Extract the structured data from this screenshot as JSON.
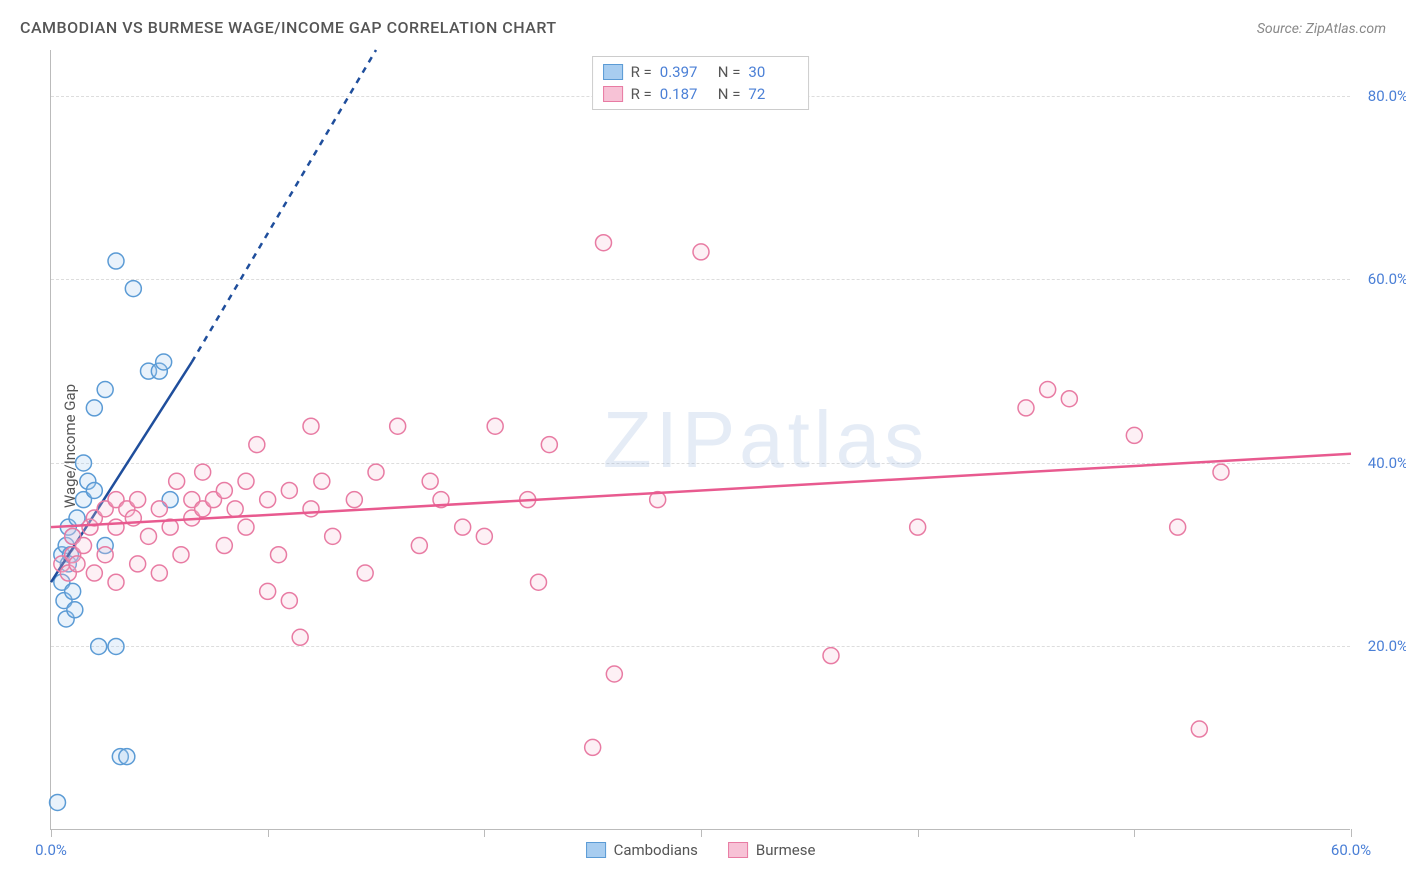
{
  "header": {
    "title": "CAMBODIAN VS BURMESE WAGE/INCOME GAP CORRELATION CHART",
    "source": "Source: ZipAtlas.com"
  },
  "watermark": "ZIPatlas",
  "chart": {
    "type": "scatter",
    "ylabel": "Wage/Income Gap",
    "xlim": [
      0,
      60
    ],
    "ylim": [
      0,
      85
    ],
    "xtick_step": 10,
    "xtick_labels": {
      "0": "0.0%",
      "60": "60.0%"
    },
    "ytick_step": 20,
    "ytick_labels": {
      "20": "20.0%",
      "40": "40.0%",
      "60": "60.0%",
      "80": "80.0%"
    },
    "background_color": "#ffffff",
    "grid_color": "#dddddd",
    "grid_dash": "4,4",
    "axis_color": "#bbbbbb",
    "marker_radius": 8,
    "marker_stroke_width": 1.5,
    "marker_fill_opacity": 0.25,
    "series": [
      {
        "name": "Cambodians",
        "color_stroke": "#5b9bd5",
        "color_fill": "#a8cdf0",
        "trend_color": "#1f4e9c",
        "trend_width": 2.5,
        "R": "0.397",
        "N": "30",
        "trend_solid": {
          "x1": 0,
          "y1": 27,
          "x2": 6.5,
          "y2": 51
        },
        "trend_dash": {
          "x1": 6.5,
          "y1": 51,
          "x2": 15,
          "y2": 85
        },
        "points": [
          [
            0.3,
            3
          ],
          [
            0.5,
            30
          ],
          [
            0.5,
            27
          ],
          [
            0.6,
            25
          ],
          [
            0.7,
            23
          ],
          [
            0.7,
            31
          ],
          [
            0.8,
            29
          ],
          [
            0.8,
            33
          ],
          [
            0.9,
            30
          ],
          [
            1.0,
            26
          ],
          [
            1.0,
            32
          ],
          [
            1.1,
            24
          ],
          [
            1.2,
            34
          ],
          [
            1.5,
            36
          ],
          [
            1.5,
            40
          ],
          [
            1.7,
            38
          ],
          [
            2.0,
            37
          ],
          [
            2.0,
            46
          ],
          [
            2.2,
            20
          ],
          [
            2.5,
            31
          ],
          [
            2.5,
            48
          ],
          [
            3.0,
            20
          ],
          [
            3.0,
            62
          ],
          [
            3.2,
            8
          ],
          [
            3.5,
            8
          ],
          [
            3.8,
            59
          ],
          [
            4.5,
            50
          ],
          [
            5.0,
            50
          ],
          [
            5.2,
            51
          ],
          [
            5.5,
            36
          ]
        ]
      },
      {
        "name": "Burmese",
        "color_stroke": "#e87ba3",
        "color_fill": "#f7c2d6",
        "trend_color": "#e85a8f",
        "trend_width": 2.5,
        "R": "0.187",
        "N": "72",
        "trend_solid": {
          "x1": 0,
          "y1": 33,
          "x2": 60,
          "y2": 41
        },
        "trend_dash": null,
        "points": [
          [
            0.5,
            29
          ],
          [
            0.8,
            28
          ],
          [
            1.0,
            30
          ],
          [
            1.0,
            32
          ],
          [
            1.2,
            29
          ],
          [
            1.5,
            31
          ],
          [
            1.8,
            33
          ],
          [
            2.0,
            28
          ],
          [
            2.0,
            34
          ],
          [
            2.5,
            30
          ],
          [
            2.5,
            35
          ],
          [
            3.0,
            27
          ],
          [
            3.0,
            33
          ],
          [
            3.0,
            36
          ],
          [
            3.5,
            35
          ],
          [
            3.8,
            34
          ],
          [
            4.0,
            29
          ],
          [
            4.0,
            36
          ],
          [
            4.5,
            32
          ],
          [
            5.0,
            28
          ],
          [
            5.0,
            35
          ],
          [
            5.5,
            33
          ],
          [
            5.8,
            38
          ],
          [
            6.0,
            30
          ],
          [
            6.5,
            36
          ],
          [
            6.5,
            34
          ],
          [
            7.0,
            35
          ],
          [
            7.0,
            39
          ],
          [
            7.5,
            36
          ],
          [
            8.0,
            31
          ],
          [
            8.0,
            37
          ],
          [
            8.5,
            35
          ],
          [
            9.0,
            33
          ],
          [
            9.0,
            38
          ],
          [
            9.5,
            42
          ],
          [
            10.0,
            26
          ],
          [
            10.0,
            36
          ],
          [
            10.5,
            30
          ],
          [
            11.0,
            37
          ],
          [
            11.0,
            25
          ],
          [
            11.5,
            21
          ],
          [
            12.0,
            35
          ],
          [
            12.0,
            44
          ],
          [
            12.5,
            38
          ],
          [
            13.0,
            32
          ],
          [
            14.0,
            36
          ],
          [
            14.5,
            28
          ],
          [
            15.0,
            39
          ],
          [
            16.0,
            44
          ],
          [
            17.0,
            31
          ],
          [
            17.5,
            38
          ],
          [
            18.0,
            36
          ],
          [
            19.0,
            33
          ],
          [
            20.0,
            32
          ],
          [
            20.5,
            44
          ],
          [
            22.0,
            36
          ],
          [
            22.5,
            27
          ],
          [
            23.0,
            42
          ],
          [
            25.0,
            9
          ],
          [
            25.5,
            64
          ],
          [
            26.0,
            17
          ],
          [
            28.0,
            36
          ],
          [
            30.0,
            63
          ],
          [
            36.0,
            19
          ],
          [
            40.0,
            33
          ],
          [
            45.0,
            46
          ],
          [
            46.0,
            48
          ],
          [
            47.0,
            47
          ],
          [
            50.0,
            43
          ],
          [
            52.0,
            33
          ],
          [
            53.0,
            11
          ],
          [
            54.0,
            39
          ]
        ]
      }
    ],
    "legend_top": {
      "rows": [
        {
          "swatch_stroke": "#5b9bd5",
          "swatch_fill": "#a8cdf0",
          "r_label": "R =",
          "r_val": "0.397",
          "n_label": "N =",
          "n_val": "30"
        },
        {
          "swatch_stroke": "#e87ba3",
          "swatch_fill": "#f7c2d6",
          "r_label": "R =",
          "r_val": "0.187",
          "n_label": "N =",
          "n_val": "72"
        }
      ]
    },
    "legend_bottom": [
      {
        "swatch_stroke": "#5b9bd5",
        "swatch_fill": "#a8cdf0",
        "label": "Cambodians"
      },
      {
        "swatch_stroke": "#e87ba3",
        "swatch_fill": "#f7c2d6",
        "label": "Burmese"
      }
    ]
  }
}
